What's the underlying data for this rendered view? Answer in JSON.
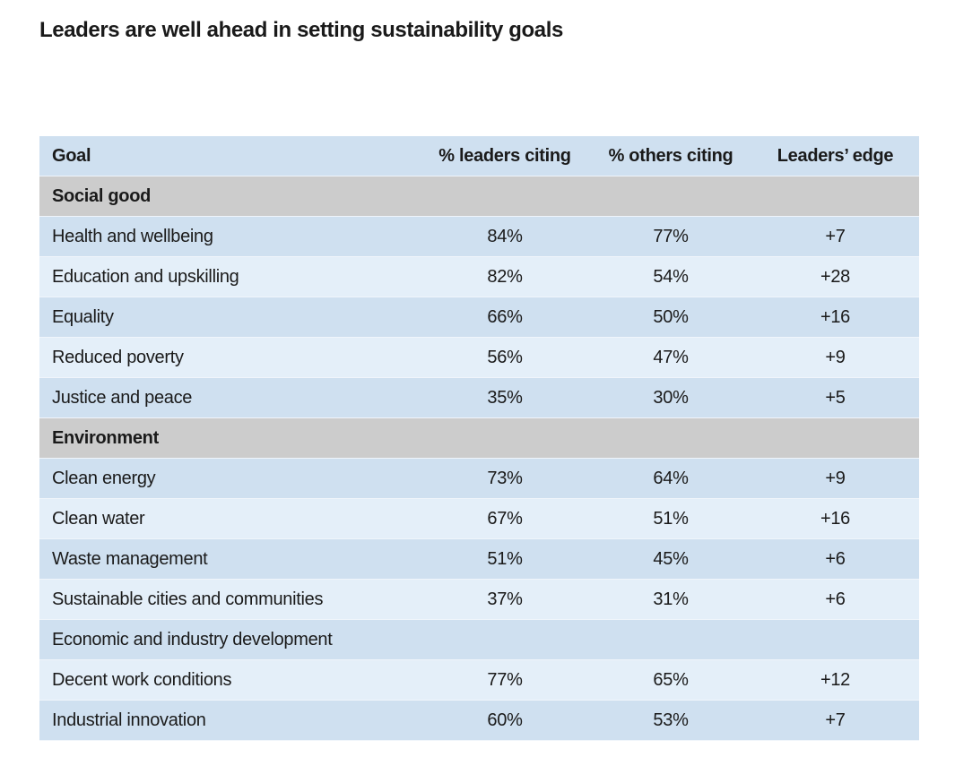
{
  "title": "Leaders are well ahead in setting sustainability goals",
  "table": {
    "headers": [
      "Goal",
      "% leaders citing",
      "% others citing",
      "Leaders’ edge"
    ],
    "rows": [
      {
        "kind": "section",
        "goal": "Social good",
        "leaders": "",
        "others": "",
        "edge": ""
      },
      {
        "kind": "data",
        "goal": "Health and wellbeing",
        "leaders": "84%",
        "others": "77%",
        "edge": "+7"
      },
      {
        "kind": "data",
        "goal": "Education and upskilling",
        "leaders": "82%",
        "others": "54%",
        "edge": "+28"
      },
      {
        "kind": "data",
        "goal": "Equality",
        "leaders": "66%",
        "others": "50%",
        "edge": "+16"
      },
      {
        "kind": "data",
        "goal": "Reduced poverty",
        "leaders": "56%",
        "others": "47%",
        "edge": "+9"
      },
      {
        "kind": "data",
        "goal": "Justice and peace",
        "leaders": "35%",
        "others": "30%",
        "edge": "+5"
      },
      {
        "kind": "section",
        "goal": "Environment",
        "leaders": "",
        "others": "",
        "edge": ""
      },
      {
        "kind": "data",
        "goal": "Clean energy",
        "leaders": "73%",
        "others": "64%",
        "edge": "+9"
      },
      {
        "kind": "data",
        "goal": "Clean water",
        "leaders": "67%",
        "others": "51%",
        "edge": "+16"
      },
      {
        "kind": "data",
        "goal": "Waste management",
        "leaders": "51%",
        "others": "45%",
        "edge": "+6"
      },
      {
        "kind": "data",
        "goal": "Sustainable cities and communities",
        "leaders": "37%",
        "others": "31%",
        "edge": "+6"
      },
      {
        "kind": "subsection",
        "goal": "Economic and industry development",
        "leaders": "",
        "others": "",
        "edge": ""
      },
      {
        "kind": "data",
        "goal": "Decent work conditions",
        "leaders": "77%",
        "others": "65%",
        "edge": "+12"
      },
      {
        "kind": "data",
        "goal": "Industrial innovation",
        "leaders": "60%",
        "others": "53%",
        "edge": "+7"
      }
    ]
  },
  "colors": {
    "header_bg": "#cfe0f0",
    "band_dark": "#cfe0f0",
    "band_light": "#e4eff9",
    "section_bg": "#cccccc"
  }
}
